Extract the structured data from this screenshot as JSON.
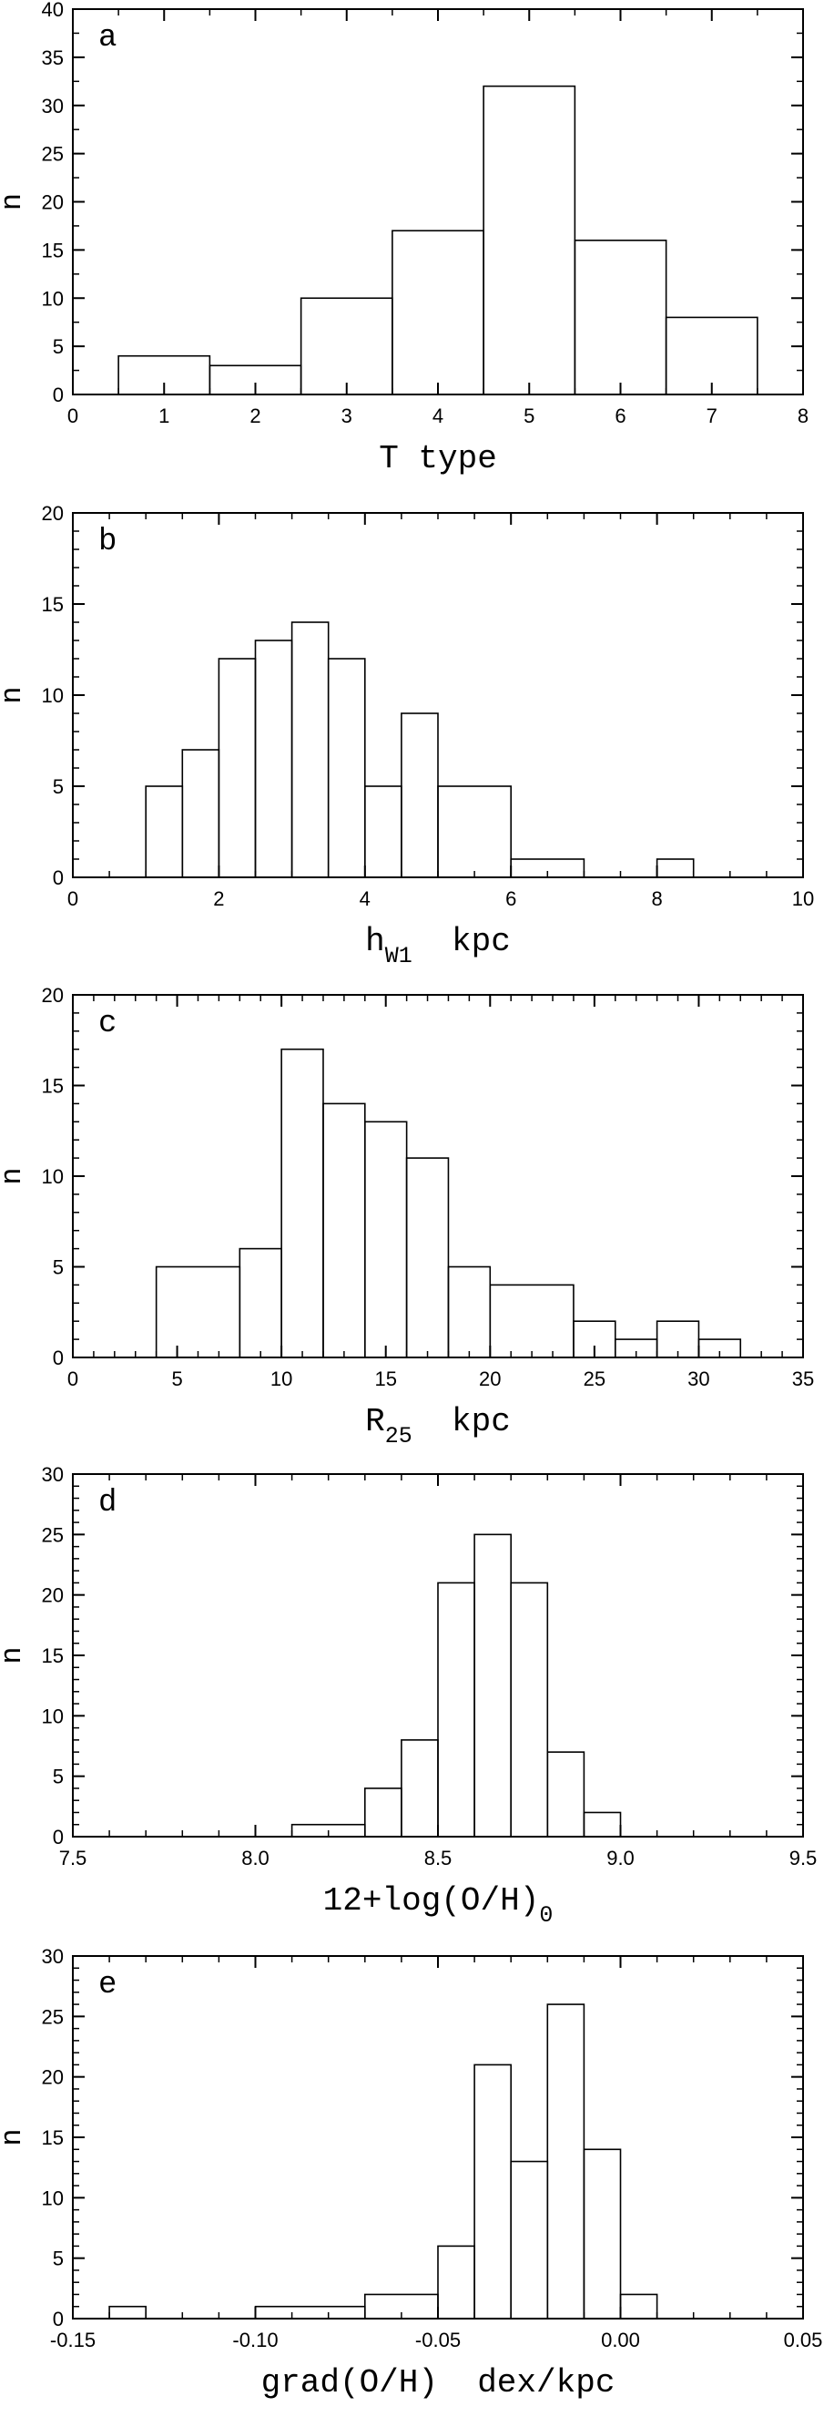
{
  "chart_data": [
    {
      "type": "bar",
      "panel_label": "a",
      "xlabel": "T type",
      "xlabel_sub": "",
      "xlabel_after": "",
      "ylabel": "n",
      "xlim": [
        0,
        8
      ],
      "ylim": [
        0,
        40
      ],
      "xticks": [
        0,
        1,
        2,
        3,
        4,
        5,
        6,
        7,
        8
      ],
      "yticks": [
        0,
        5,
        10,
        15,
        20,
        25,
        30,
        35,
        40
      ],
      "xminor": 0.5,
      "yminor": 2.5,
      "bins": [
        [
          0.5,
          1.5,
          4
        ],
        [
          1.5,
          2.5,
          3
        ],
        [
          2.5,
          3.5,
          10
        ],
        [
          3.5,
          4.5,
          17
        ],
        [
          4.5,
          5.5,
          32
        ],
        [
          5.5,
          6.5,
          16
        ],
        [
          6.5,
          7.5,
          8
        ]
      ]
    },
    {
      "type": "bar",
      "panel_label": "b",
      "xlabel": "h",
      "xlabel_sub": "W1",
      "xlabel_after": "kpc",
      "ylabel": "n",
      "xlim": [
        0,
        10
      ],
      "ylim": [
        0,
        20
      ],
      "xticks": [
        0,
        2,
        4,
        6,
        8,
        10
      ],
      "yticks": [
        0,
        5,
        10,
        15,
        20
      ],
      "xminor": 0.5,
      "yminor": 1,
      "bins": [
        [
          1.0,
          1.5,
          5
        ],
        [
          1.5,
          2.0,
          7
        ],
        [
          2.0,
          2.5,
          12
        ],
        [
          2.5,
          3.0,
          13
        ],
        [
          3.0,
          3.5,
          14
        ],
        [
          3.5,
          4.0,
          12
        ],
        [
          4.0,
          4.5,
          5
        ],
        [
          4.5,
          5.0,
          9
        ],
        [
          5.0,
          6.0,
          5
        ],
        [
          6.0,
          7.0,
          1
        ],
        [
          8.0,
          8.5,
          1
        ]
      ]
    },
    {
      "type": "bar",
      "panel_label": "c",
      "xlabel": "R",
      "xlabel_sub": "25",
      "xlabel_after": "kpc",
      "ylabel": "n",
      "xlim": [
        0,
        35
      ],
      "ylim": [
        0,
        20
      ],
      "xticks": [
        0,
        5,
        10,
        15,
        20,
        25,
        30,
        35
      ],
      "yticks": [
        0,
        5,
        10,
        15,
        20
      ],
      "xminor": 1,
      "yminor": 1,
      "bins": [
        [
          4,
          8,
          5
        ],
        [
          8,
          10,
          6
        ],
        [
          10,
          12,
          17
        ],
        [
          12,
          14,
          14
        ],
        [
          14,
          16,
          13
        ],
        [
          16,
          18,
          11
        ],
        [
          18,
          20,
          5
        ],
        [
          20,
          24,
          4
        ],
        [
          24,
          26,
          2
        ],
        [
          26,
          28,
          1
        ],
        [
          28,
          30,
          2
        ],
        [
          30,
          32,
          1
        ]
      ]
    },
    {
      "type": "bar",
      "panel_label": "d",
      "xlabel": "12+log(O/H)",
      "xlabel_sub": "0",
      "xlabel_after": "",
      "ylabel": "n",
      "xlim": [
        7.5,
        9.5
      ],
      "ylim": [
        0,
        30
      ],
      "xticks": [
        7.5,
        8.0,
        8.5,
        9.0,
        9.5
      ],
      "xtick_labels": [
        "7.5",
        "8.0",
        "8.5",
        "9.0",
        "9.5"
      ],
      "yticks": [
        0,
        5,
        10,
        15,
        20,
        25,
        30
      ],
      "xminor": 0.1,
      "yminor": 1,
      "bins": [
        [
          8.1,
          8.3,
          1
        ],
        [
          8.3,
          8.4,
          4
        ],
        [
          8.4,
          8.5,
          8
        ],
        [
          8.5,
          8.6,
          21
        ],
        [
          8.6,
          8.7,
          25
        ],
        [
          8.7,
          8.8,
          21
        ],
        [
          8.8,
          8.9,
          7
        ],
        [
          8.9,
          9.0,
          2
        ]
      ]
    },
    {
      "type": "bar",
      "panel_label": "e",
      "xlabel": "grad(O/H)",
      "xlabel_sub": "",
      "xlabel_after": "dex/kpc",
      "ylabel": "n",
      "xlim": [
        -0.15,
        0.05
      ],
      "ylim": [
        0,
        30
      ],
      "xticks": [
        -0.15,
        -0.1,
        -0.05,
        0.0,
        0.05
      ],
      "xtick_labels": [
        "-0.15",
        "-0.10",
        "-0.05",
        "0.00",
        "0.05"
      ],
      "yticks": [
        0,
        5,
        10,
        15,
        20,
        25,
        30
      ],
      "xminor": 0.01,
      "yminor": 1,
      "bins": [
        [
          -0.14,
          -0.13,
          1
        ],
        [
          -0.1,
          -0.07,
          1
        ],
        [
          -0.07,
          -0.05,
          2
        ],
        [
          -0.05,
          -0.04,
          6
        ],
        [
          -0.04,
          -0.03,
          21
        ],
        [
          -0.03,
          -0.02,
          13
        ],
        [
          -0.02,
          -0.01,
          26
        ],
        [
          -0.01,
          0.0,
          14
        ],
        [
          0.0,
          0.01,
          2
        ]
      ]
    }
  ]
}
